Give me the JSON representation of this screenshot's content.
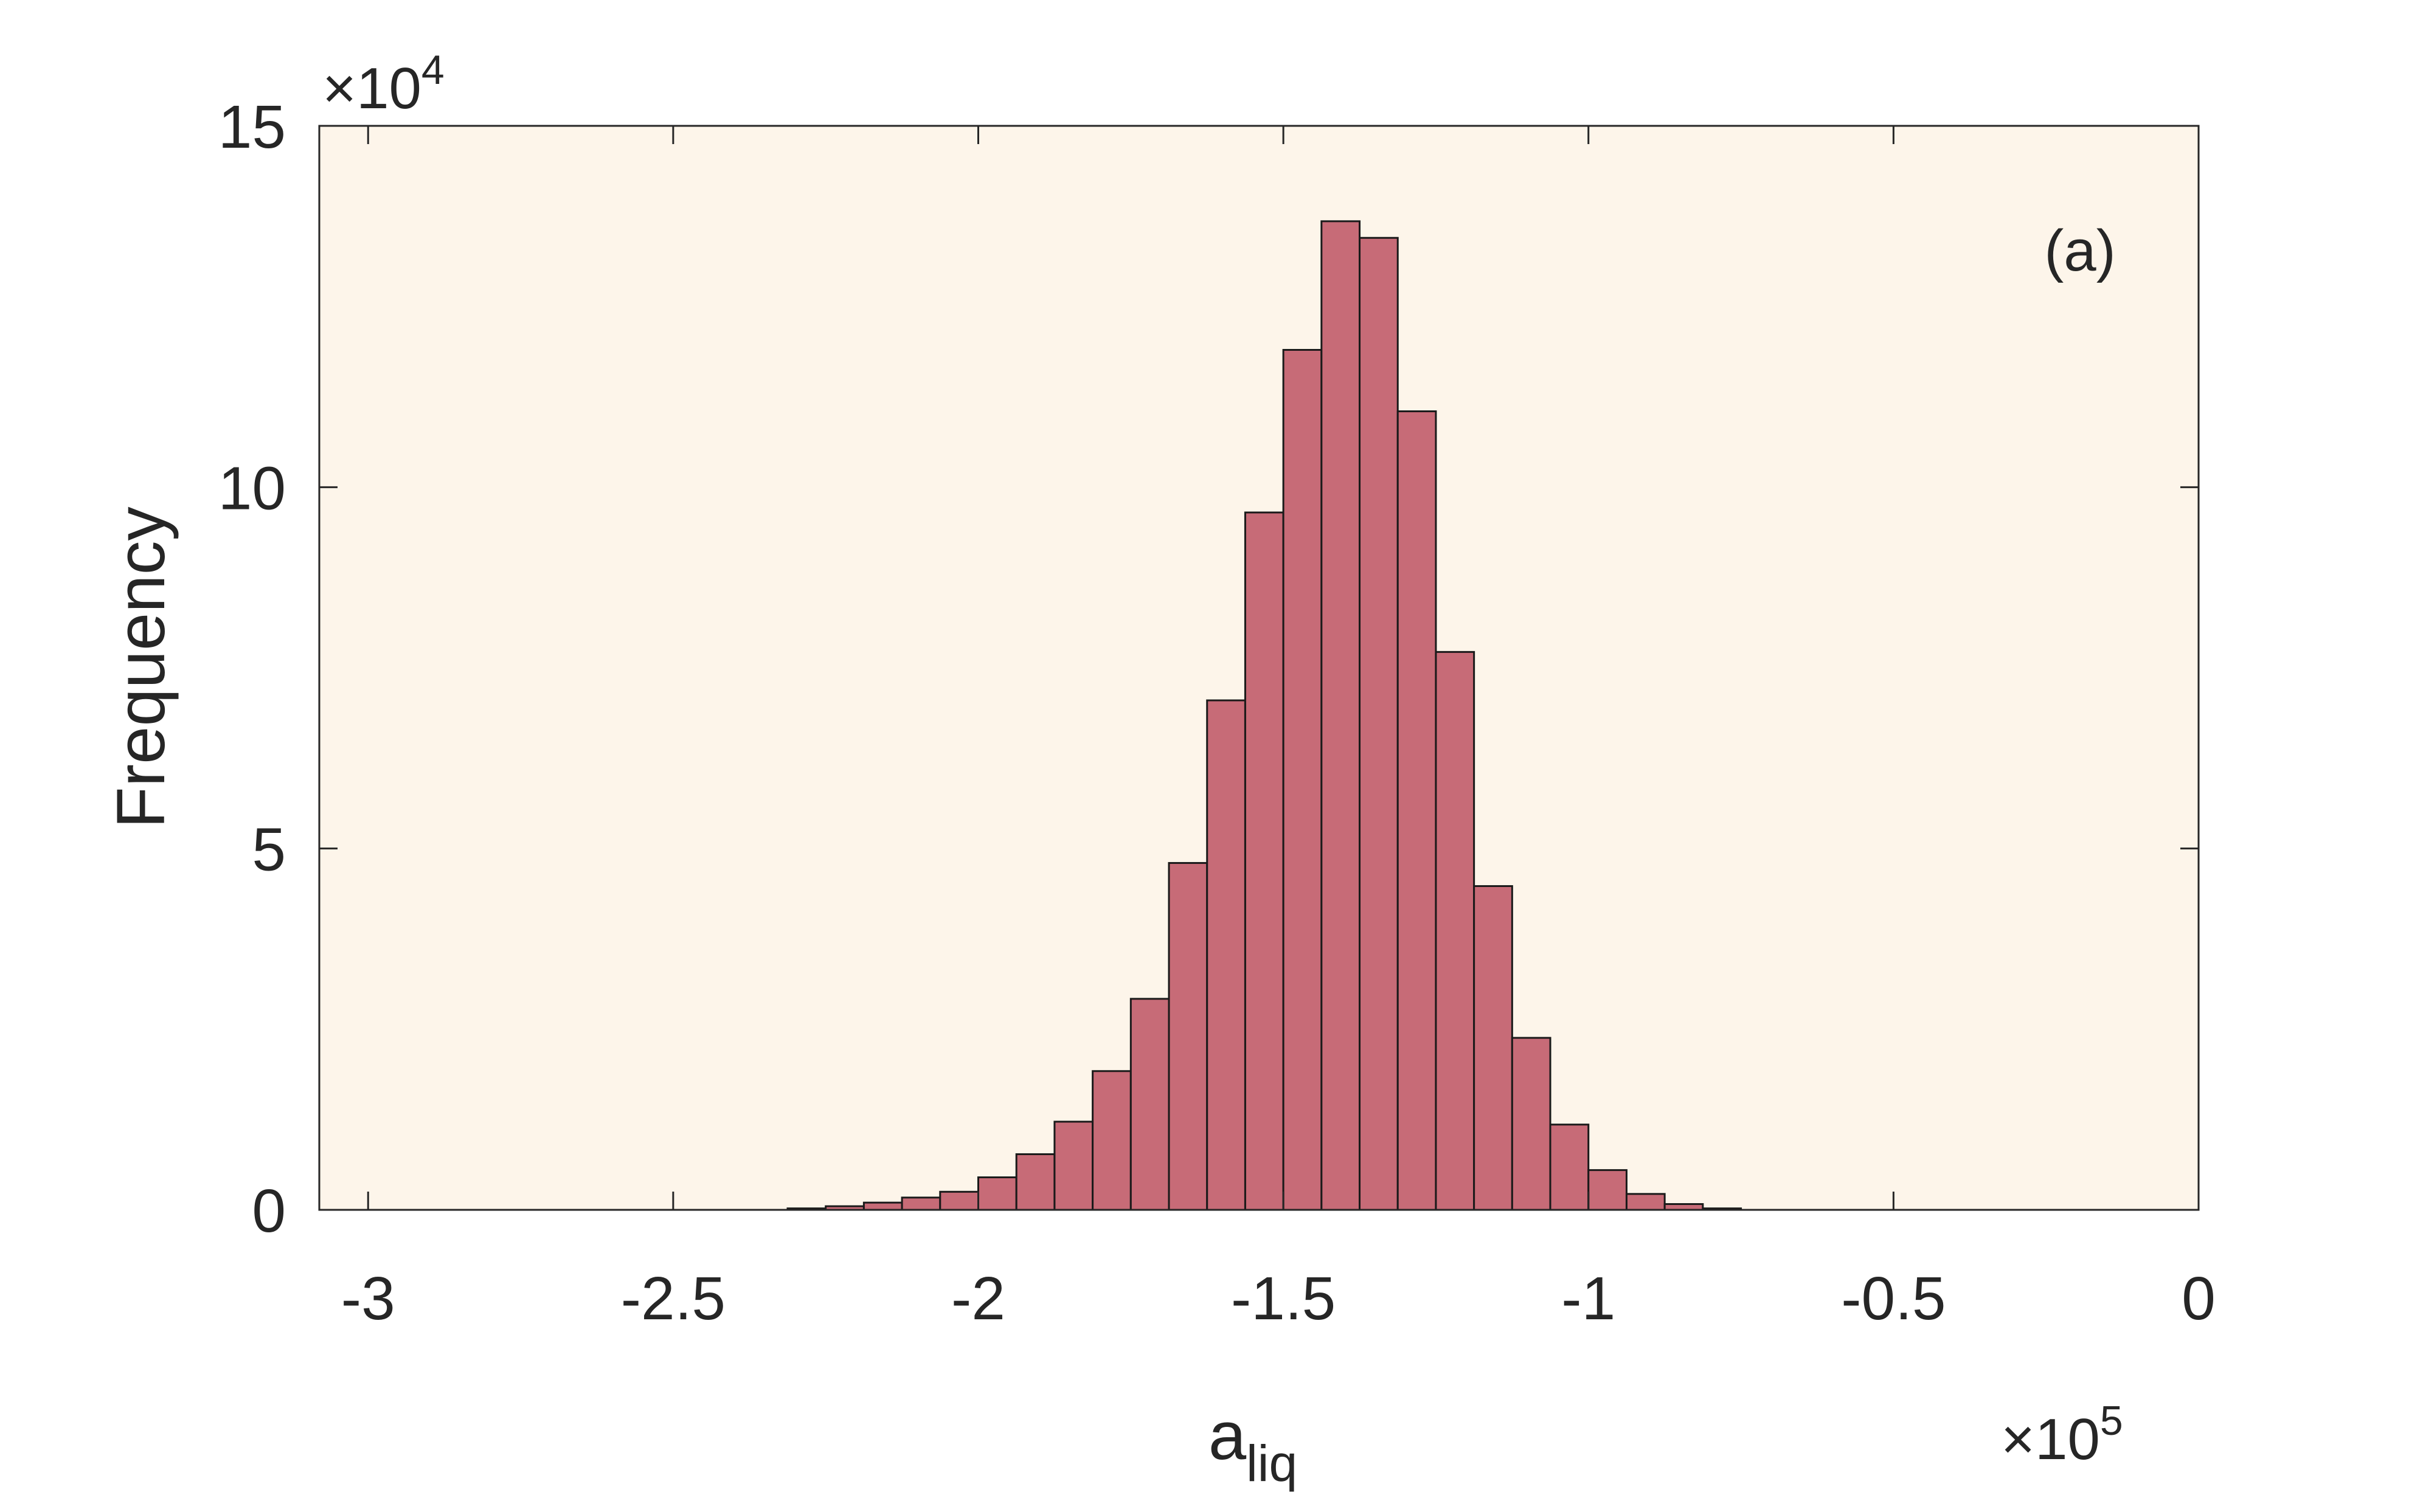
{
  "chart_data": {
    "type": "bar",
    "title": "",
    "xlabel": "a",
    "xlabel_sub": "liq",
    "ylabel": "Frequency",
    "annotation": "(a)",
    "x_multiplier": "×10",
    "x_multiplier_exp": "5",
    "y_multiplier": "×10",
    "y_multiplier_exp": "4",
    "xlim": [
      -3.08,
      0
    ],
    "ylim": [
      0,
      15
    ],
    "xticks": [
      -3,
      -2.5,
      -2,
      -1.5,
      -1,
      -0.5,
      0
    ],
    "xtick_labels": [
      "-3",
      "-2.5",
      "-2",
      "-1.5",
      "-1",
      "-0.5",
      "0"
    ],
    "yticks": [
      0,
      5,
      10,
      15
    ],
    "ytick_labels": [
      "0",
      "5",
      "10",
      "15"
    ],
    "bin_width": 0.0625,
    "bin_starts": [
      -2.3125,
      -2.25,
      -2.1875,
      -2.125,
      -2.0625,
      -2.0,
      -1.9375,
      -1.875,
      -1.8125,
      -1.75,
      -1.6875,
      -1.625,
      -1.5625,
      -1.5,
      -1.4375,
      -1.375,
      -1.3125,
      -1.25,
      -1.1875,
      -1.125,
      -1.0625,
      -1.0,
      -0.9375,
      -0.875,
      -0.8125
    ],
    "values": [
      0.02,
      0.05,
      0.1,
      0.17,
      0.25,
      0.45,
      0.77,
      1.22,
      1.92,
      2.92,
      4.8,
      7.05,
      9.65,
      11.9,
      13.68,
      13.45,
      11.05,
      7.72,
      4.48,
      2.38,
      1.18,
      0.55,
      0.22,
      0.08,
      0.02
    ],
    "colors": {
      "bar_fill": "#c76b77",
      "bar_edge": "#1a1a1a",
      "plot_background": "#fdf5ea",
      "axis": "#262626"
    },
    "grid": false
  }
}
